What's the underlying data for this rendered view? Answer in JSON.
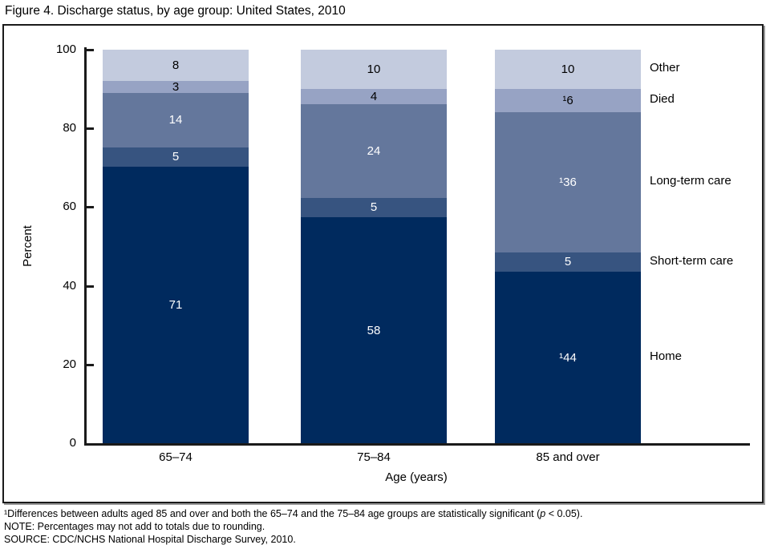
{
  "title": "Figure 4. Discharge status, by age group: United States, 2010",
  "chart_data": {
    "type": "bar",
    "subtype": "stacked-vertical",
    "categories": [
      "65–74",
      "75–84",
      "85 and over"
    ],
    "series": [
      {
        "name": "Home",
        "color": "#002a5e",
        "label_color": "#ffffff",
        "values": [
          71,
          58,
          44
        ],
        "labels": [
          "71",
          "58",
          "¹44"
        ]
      },
      {
        "name": "Short-term care",
        "color": "#375480",
        "label_color": "#ffffff",
        "values": [
          5,
          5,
          5
        ],
        "labels": [
          "5",
          "5",
          "5"
        ]
      },
      {
        "name": "Long-term care",
        "color": "#64779c",
        "label_color": "#ffffff",
        "values": [
          14,
          24,
          36
        ],
        "labels": [
          "14",
          "24",
          "¹36"
        ]
      },
      {
        "name": "Died",
        "color": "#97a3c4",
        "label_color": "#000000",
        "values": [
          3,
          4,
          6
        ],
        "labels": [
          "3",
          "4",
          "¹6"
        ]
      },
      {
        "name": "Other",
        "color": "#c3cbde",
        "label_color": "#000000",
        "values": [
          8,
          10,
          10
        ],
        "labels": [
          "8",
          "10",
          "10"
        ]
      }
    ],
    "title": "Figure 4. Discharge status, by age group: United States, 2010",
    "xlabel": "Age (years)",
    "ylabel": "Percent",
    "yticks": [
      0,
      20,
      40,
      60,
      80,
      100
    ],
    "ylim": [
      0,
      100
    ],
    "grid": false,
    "legend_position": "right-of-last-bar"
  },
  "footnotes": {
    "f1_pre": "¹Differences between adults aged 85 and over and both the 65–74 and the 75–84 age groups are statistically significant (",
    "f1_italic": "p",
    "f1_post": " < 0.05).",
    "note": "NOTE: Percentages may not add to totals due to rounding.",
    "source": "SOURCE: CDC/NCHS National Hospital Discharge Survey, 2010."
  }
}
